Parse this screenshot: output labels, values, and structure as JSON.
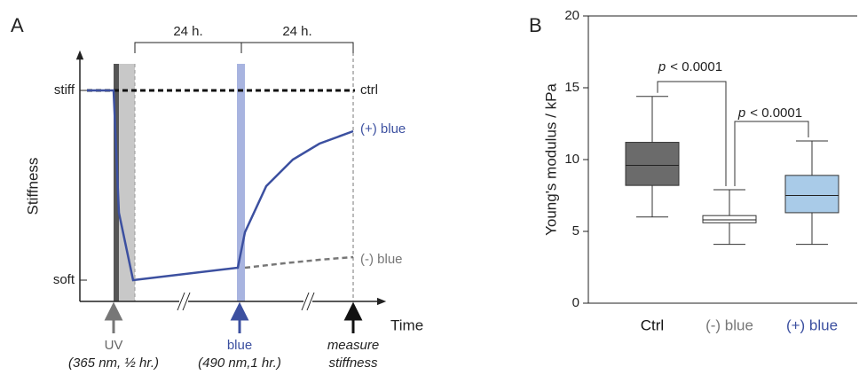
{
  "schematic": {
    "panel_label": "A",
    "y_label": "Stiffness",
    "x_label": "Time",
    "y_levels": [
      "stiff",
      "soft"
    ],
    "intervals": [
      "24 h.",
      "24 h."
    ],
    "curve_labels": [
      "ctrl",
      "(+) blue",
      "(-) blue"
    ],
    "events": [
      {
        "name": "UV",
        "detail": "(365 nm, ½ hr.)"
      },
      {
        "name": "blue",
        "detail": "(490 nm,1 hr.)"
      },
      {
        "name": "measure",
        "detail": "stiffness"
      }
    ]
  },
  "chart_data": {
    "type": "box",
    "panel_label": "B",
    "ylabel": "Young's modulus / kPa",
    "categories": [
      "Ctrl",
      "(-) blue",
      "(+) blue"
    ],
    "category_colors": [
      "#111111",
      "#777777",
      "#3c50a0"
    ],
    "boxes": [
      {
        "whislo": 6.0,
        "q1": 8.2,
        "med": 9.6,
        "q3": 11.2,
        "whishi": 14.4,
        "color": "#6b6b6b"
      },
      {
        "whislo": 4.1,
        "q1": 5.6,
        "med": 5.8,
        "q3": 6.1,
        "whishi": 7.9,
        "color": "#ffffff"
      },
      {
        "whislo": 4.1,
        "q1": 6.3,
        "med": 7.5,
        "q3": 8.9,
        "whishi": 11.3,
        "color": "#a9cbe8"
      }
    ],
    "ylim": [
      0,
      20
    ],
    "yticks": [
      0,
      5,
      10,
      15,
      20
    ],
    "annotations": [
      {
        "symbol": "p",
        "text": "< 0.0001"
      },
      {
        "symbol": "p",
        "text": "< 0.0001"
      }
    ]
  }
}
